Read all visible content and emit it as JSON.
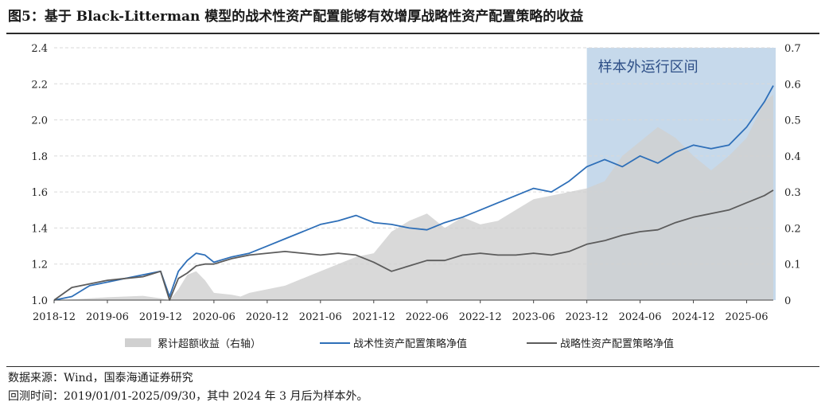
{
  "title": "图5：基于 Black-Litterman 模型的战术性资产配置能够有效增厚战略性资产配置策略的收益",
  "colors": {
    "excess_area": "#d0d0d0",
    "tactical_line": "#2e6fb8",
    "strategic_line": "#5c5c5c",
    "oos_shade": "#bcd2e8",
    "oos_text": "#2e4f87"
  },
  "footer": {
    "source": "数据来源：Wind，国泰海通证券研究",
    "period": "回测时间：2019/01/01-2025/09/30，其中 2024 年 3 月后为样本外。"
  },
  "chart_data": {
    "type": "line",
    "title": "",
    "out_of_sample_label": "样本外运行区间",
    "out_of_sample_range": [
      "2023-12",
      "2025-09"
    ],
    "x_tick_labels": [
      "2018-12",
      "2019-06",
      "2019-12",
      "2020-06",
      "2020-12",
      "2021-06",
      "2021-12",
      "2022-06",
      "2022-12",
      "2023-06",
      "2023-12",
      "2024-06",
      "2024-12",
      "2025-06"
    ],
    "x_range": [
      0,
      81
    ],
    "y_left": {
      "range": [
        1.0,
        2.4
      ],
      "ticks": [
        "1.0",
        "1.2",
        "1.4",
        "1.6",
        "1.8",
        "2.0",
        "2.2",
        "2.4"
      ]
    },
    "y_right": {
      "range": [
        0,
        0.7
      ],
      "ticks": [
        "0",
        "0.1",
        "0.2",
        "0.3",
        "0.4",
        "0.5",
        "0.6",
        "0.7"
      ]
    },
    "legend": [
      "累计超额收益（右轴）",
      "战术性资产配置策略净值",
      "战略性资产配置策略净值"
    ],
    "series": [
      {
        "name": "累计超额收益（右轴）",
        "axis": "right",
        "kind": "area",
        "x": [
          0,
          2,
          4,
          6,
          8,
          10,
          12,
          13,
          14,
          15,
          16,
          17,
          18,
          20,
          21,
          22,
          24,
          26,
          28,
          30,
          32,
          34,
          36,
          38,
          40,
          42,
          44,
          46,
          48,
          50,
          52,
          54,
          56,
          58,
          60,
          62,
          64,
          66,
          68,
          70,
          72,
          74,
          76,
          78,
          80,
          81
        ],
        "values": [
          0.0,
          0.002,
          0.005,
          0.008,
          0.01,
          0.012,
          0.005,
          -0.01,
          0.03,
          0.07,
          0.08,
          0.055,
          0.02,
          0.015,
          0.01,
          0.02,
          0.03,
          0.04,
          0.06,
          0.08,
          0.1,
          0.12,
          0.13,
          0.19,
          0.22,
          0.24,
          0.2,
          0.23,
          0.21,
          0.22,
          0.25,
          0.28,
          0.29,
          0.3,
          0.31,
          0.33,
          0.4,
          0.44,
          0.48,
          0.45,
          0.4,
          0.36,
          0.4,
          0.45,
          0.55,
          0.57
        ]
      },
      {
        "name": "战术性资产配置策略净值",
        "axis": "left",
        "kind": "line",
        "x": [
          0,
          2,
          4,
          6,
          8,
          10,
          12,
          13,
          14,
          15,
          16,
          17,
          18,
          20,
          22,
          24,
          26,
          28,
          30,
          32,
          34,
          36,
          38,
          40,
          42,
          44,
          46,
          48,
          50,
          52,
          54,
          56,
          58,
          60,
          62,
          64,
          66,
          68,
          70,
          72,
          74,
          76,
          78,
          80,
          81
        ],
        "values": [
          1.0,
          1.02,
          1.08,
          1.1,
          1.12,
          1.14,
          1.16,
          1.02,
          1.16,
          1.22,
          1.26,
          1.25,
          1.21,
          1.24,
          1.26,
          1.3,
          1.34,
          1.38,
          1.42,
          1.44,
          1.47,
          1.43,
          1.42,
          1.4,
          1.39,
          1.43,
          1.46,
          1.5,
          1.54,
          1.58,
          1.62,
          1.6,
          1.66,
          1.74,
          1.78,
          1.74,
          1.8,
          1.76,
          1.82,
          1.86,
          1.84,
          1.86,
          1.96,
          2.1,
          2.19
        ]
      },
      {
        "name": "战略性资产配置策略净值",
        "axis": "left",
        "kind": "line",
        "x": [
          0,
          2,
          4,
          6,
          8,
          10,
          12,
          13,
          14,
          15,
          16,
          17,
          18,
          20,
          22,
          24,
          26,
          28,
          30,
          32,
          34,
          36,
          38,
          40,
          42,
          44,
          46,
          48,
          50,
          52,
          54,
          56,
          58,
          60,
          62,
          64,
          66,
          68,
          70,
          72,
          74,
          76,
          78,
          80,
          81
        ],
        "values": [
          1.0,
          1.07,
          1.09,
          1.11,
          1.12,
          1.13,
          1.16,
          1.0,
          1.12,
          1.15,
          1.19,
          1.2,
          1.2,
          1.23,
          1.25,
          1.26,
          1.27,
          1.26,
          1.25,
          1.26,
          1.25,
          1.21,
          1.16,
          1.19,
          1.22,
          1.22,
          1.25,
          1.26,
          1.25,
          1.25,
          1.26,
          1.25,
          1.27,
          1.31,
          1.33,
          1.36,
          1.38,
          1.39,
          1.43,
          1.46,
          1.48,
          1.5,
          1.54,
          1.58,
          1.61
        ]
      }
    ]
  }
}
